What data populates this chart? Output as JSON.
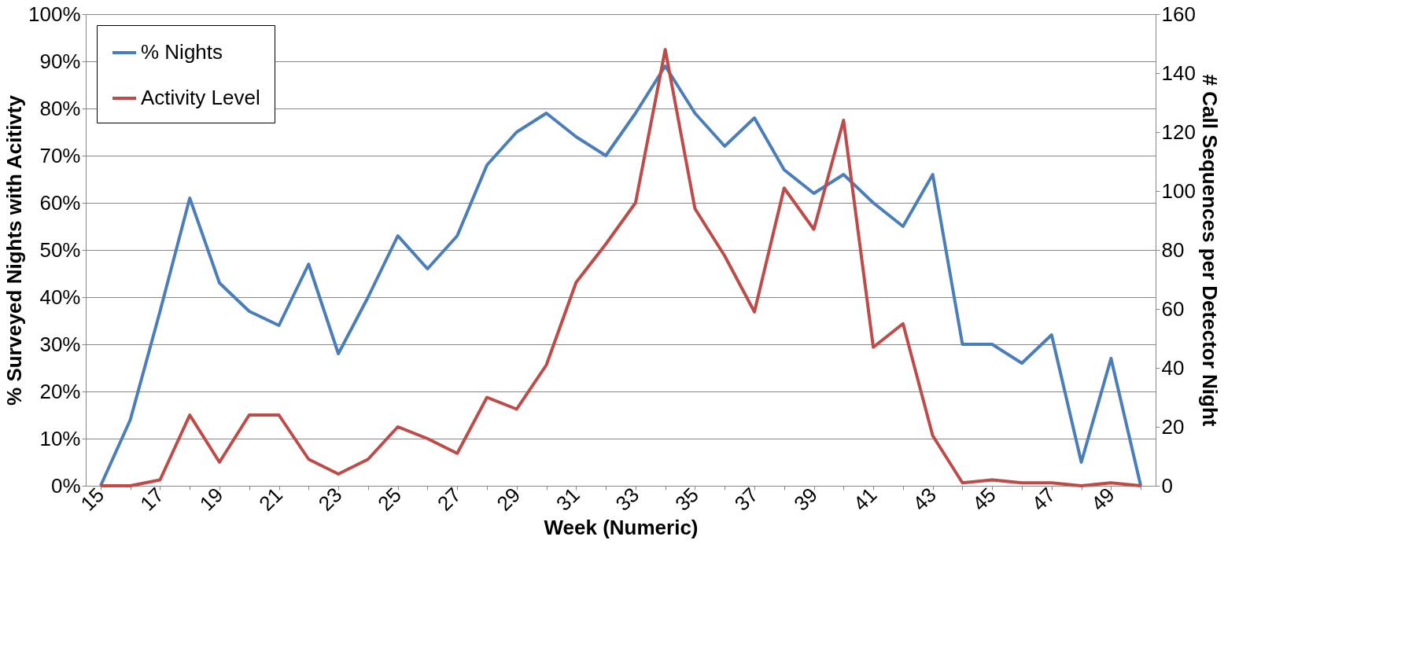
{
  "chart_data": {
    "type": "line",
    "xlabel": "Week (Numeric)",
    "ylabel": "% Surveyed Nights with Acitivty",
    "y2label": "# Call Sequences per Detector Night",
    "categories": [
      "15",
      null,
      "17",
      null,
      "19",
      null,
      "21",
      null,
      "23",
      null,
      "25",
      null,
      "27",
      null,
      "29",
      null,
      "31",
      null,
      "33",
      null,
      "35",
      null,
      "37",
      null,
      "39",
      null,
      "41",
      null,
      "43",
      null,
      "45",
      null,
      "47",
      null,
      "49",
      null
    ],
    "series": [
      {
        "name": "% Nights",
        "color": "#4a7ebb",
        "values": [
          0,
          14,
          37,
          61,
          43,
          37,
          34,
          47,
          28,
          40,
          53,
          46,
          53,
          68,
          75,
          79,
          74,
          70,
          79,
          89,
          79,
          72,
          78,
          67,
          62,
          66,
          60,
          55,
          66,
          30,
          30,
          26,
          32,
          5,
          27,
          0
        ]
      },
      {
        "name": "Activity Level",
        "color": "#be4b48",
        "axis": "y2",
        "values": [
          0,
          0,
          2,
          24,
          8,
          24,
          24,
          9,
          4,
          9,
          20,
          16,
          11,
          30,
          26,
          41,
          69,
          82,
          96,
          148,
          94,
          78,
          59,
          101,
          87,
          124,
          47,
          55,
          17,
          1,
          2,
          1,
          1,
          0,
          1,
          0
        ]
      }
    ],
    "ylim": [
      0,
      100
    ],
    "yticks": [
      {
        "value": 0,
        "label": "0%"
      },
      {
        "value": 10,
        "label": "10%"
      },
      {
        "value": 20,
        "label": "20%"
      },
      {
        "value": 30,
        "label": "30%"
      },
      {
        "value": 40,
        "label": "40%"
      },
      {
        "value": 50,
        "label": "50%"
      },
      {
        "value": 60,
        "label": "60%"
      },
      {
        "value": 70,
        "label": "70%"
      },
      {
        "value": 80,
        "label": "80%"
      },
      {
        "value": 90,
        "label": "90%"
      },
      {
        "value": 100,
        "label": "100%"
      }
    ],
    "y2lim": [
      0,
      160
    ],
    "y2ticks": [
      0,
      20,
      40,
      60,
      80,
      100,
      120,
      140,
      160
    ],
    "grid": "y",
    "legend": "top left",
    "marker": "none",
    "line_style": "solid"
  }
}
